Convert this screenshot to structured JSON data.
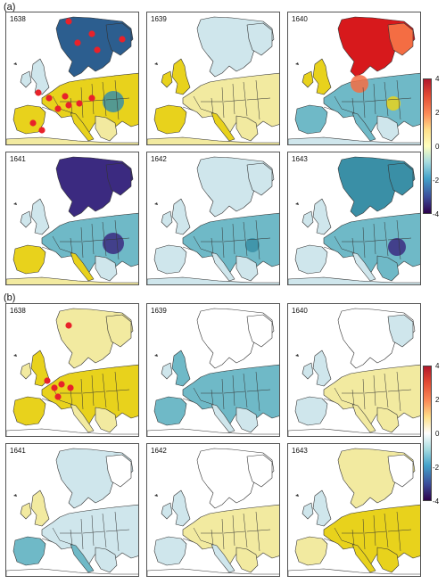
{
  "sections": [
    {
      "label": "(a)",
      "colorbar_ticks": [
        "4",
        "2",
        "0",
        "-2",
        "-4"
      ],
      "panels": [
        {
          "year": "1638",
          "scheme": "a1638"
        },
        {
          "year": "1639",
          "scheme": "a1639"
        },
        {
          "year": "1640",
          "scheme": "a1640"
        },
        {
          "year": "1641",
          "scheme": "a1641"
        },
        {
          "year": "1642",
          "scheme": "a1642"
        },
        {
          "year": "1643",
          "scheme": "a1643"
        }
      ]
    },
    {
      "label": "(b)",
      "colorbar_ticks": [
        "4",
        "2",
        "0",
        "-2",
        "-4"
      ],
      "panels": [
        {
          "year": "1638",
          "scheme": "b1638"
        },
        {
          "year": "1639",
          "scheme": "b1639"
        },
        {
          "year": "1640",
          "scheme": "b1640"
        },
        {
          "year": "1641",
          "scheme": "b1641"
        },
        {
          "year": "1642",
          "scheme": "b1642"
        },
        {
          "year": "1643",
          "scheme": "b1643"
        }
      ]
    }
  ],
  "colors": {
    "red": "#d7191c",
    "orange": "#f46d43",
    "yellow": "#e8d21c",
    "paleyellow": "#f2eaa0",
    "white": "#ffffff",
    "paleblue": "#cfe6ec",
    "cyan": "#6fb9c7",
    "teal": "#3a8fa6",
    "blue": "#2c5e8f",
    "purple": "#3b2a80",
    "border": "#333333",
    "point": "#e8222a"
  }
}
